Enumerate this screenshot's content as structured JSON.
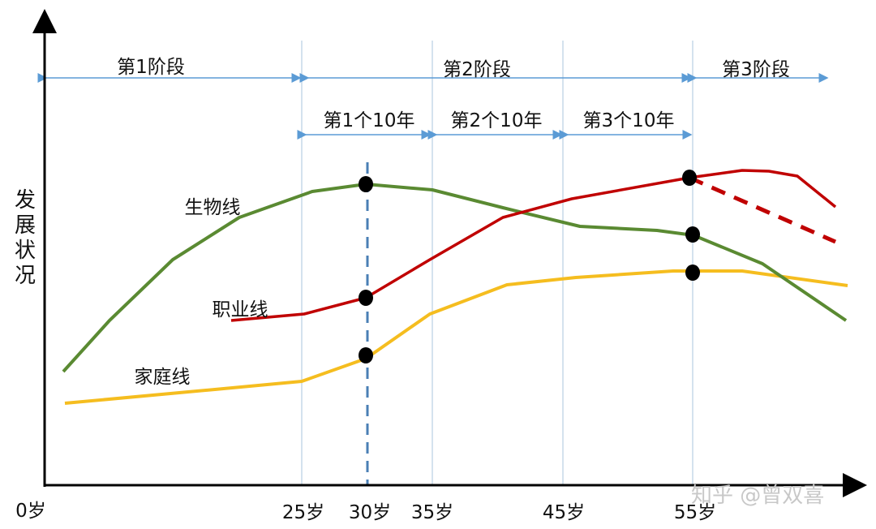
{
  "y_axis_label": "发展状况",
  "stages": [
    "第1阶段",
    "第2阶段",
    "第3阶段"
  ],
  "decades": [
    "第1个10年",
    "第2个10年",
    "第3个10年"
  ],
  "x_ticks": [
    "0岁",
    "25岁",
    "30岁",
    "35岁",
    "45岁",
    "55岁"
  ],
  "lines": {
    "biological": {
      "label": "生物线",
      "color": "#5a8a32"
    },
    "career": {
      "label": "职业线",
      "color": "#c00000"
    },
    "family": {
      "label": "家庭线",
      "color": "#f5bd1f"
    }
  },
  "guide_color": "#4a7fb5",
  "watermark": "知乎 @曾双喜"
}
